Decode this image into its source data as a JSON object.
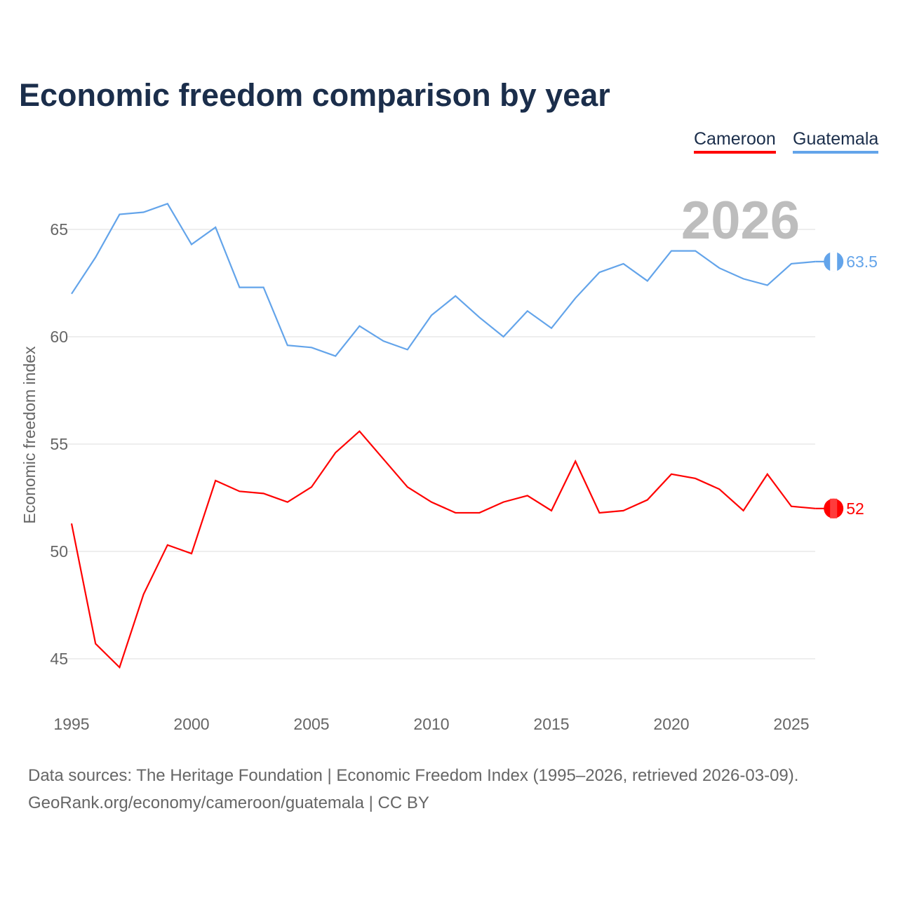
{
  "title": "Economic freedom comparison by year",
  "legend": [
    "Cameroon",
    "Guatemala"
  ],
  "source_line1": "Data sources: The Heritage Foundation | Economic Freedom Index (1995–2026, retrieved 2026-03-09).",
  "source_line2": "GeoRank.org/economy/cameroon/guatemala | CC BY",
  "chart_data": {
    "type": "line",
    "title": "Economic freedom comparison by year",
    "xlabel": "",
    "ylabel": "Economic freedom index",
    "year_label": "2026",
    "xlim": [
      1995,
      2026
    ],
    "ylim": [
      43,
      68
    ],
    "xticks": [
      1995,
      2000,
      2005,
      2010,
      2015,
      2020,
      2025
    ],
    "yticks": [
      45,
      50,
      55,
      60,
      65
    ],
    "grid": true,
    "legend_position": "top-right",
    "x": [
      1995,
      1996,
      1997,
      1998,
      1999,
      2000,
      2001,
      2002,
      2003,
      2004,
      2005,
      2006,
      2007,
      2008,
      2009,
      2010,
      2011,
      2012,
      2013,
      2014,
      2015,
      2016,
      2017,
      2018,
      2019,
      2020,
      2021,
      2022,
      2023,
      2024,
      2025,
      2026
    ],
    "series": [
      {
        "name": "Cameroon",
        "color": "#ff0000",
        "end_label": "52",
        "values": [
          51.3,
          45.7,
          44.6,
          48.0,
          50.3,
          49.9,
          53.3,
          52.8,
          52.7,
          52.3,
          53.0,
          54.6,
          55.6,
          54.3,
          53.0,
          52.3,
          51.8,
          51.8,
          52.3,
          52.6,
          51.9,
          54.2,
          51.8,
          51.9,
          52.4,
          53.6,
          53.4,
          52.9,
          51.9,
          53.6,
          52.1,
          52.0
        ]
      },
      {
        "name": "Guatemala",
        "color": "#63a4ea",
        "end_label": "63.5",
        "values": [
          62.0,
          63.7,
          65.7,
          65.8,
          66.2,
          64.3,
          65.1,
          62.3,
          62.3,
          59.6,
          59.5,
          59.1,
          60.5,
          59.8,
          59.4,
          61.0,
          61.9,
          60.9,
          60.0,
          61.2,
          60.4,
          61.8,
          63.0,
          63.4,
          62.6,
          64.0,
          64.0,
          63.2,
          62.7,
          62.4,
          63.4,
          63.5
        ]
      }
    ]
  }
}
